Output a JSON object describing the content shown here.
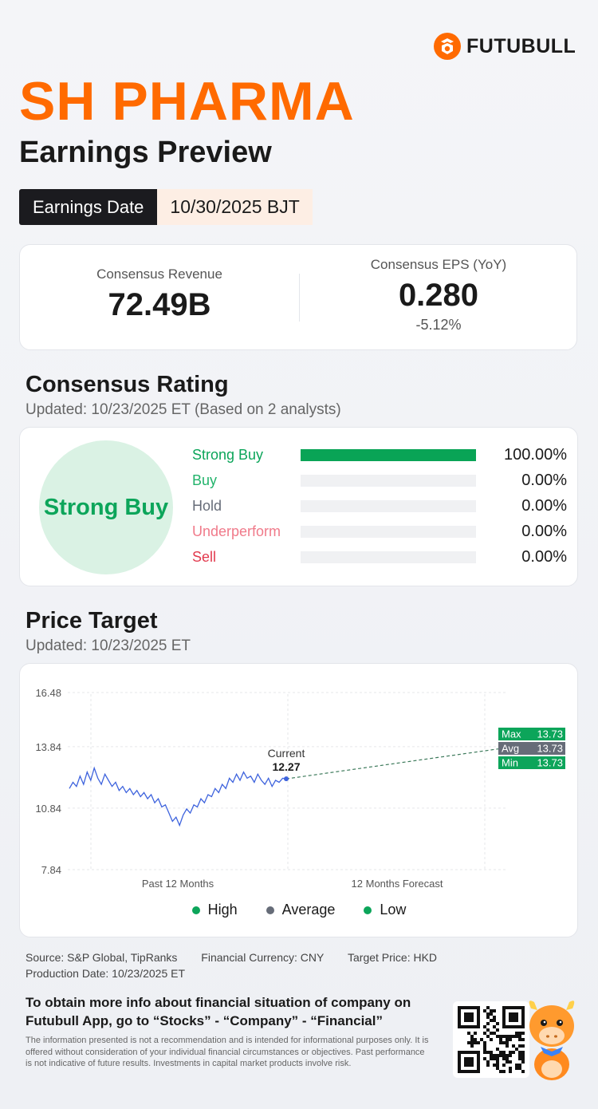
{
  "brand": {
    "name": "FUTUBULL"
  },
  "header": {
    "company": "SH PHARMA",
    "subtitle": "Earnings Preview",
    "date_label": "Earnings Date",
    "date_value": "10/30/2025 BJT"
  },
  "consensus": {
    "revenue_label": "Consensus Revenue",
    "revenue_value": "72.49B",
    "eps_label": "Consensus EPS (YoY)",
    "eps_value": "0.280",
    "eps_change": "-5.12%"
  },
  "rating": {
    "title": "Consensus Rating",
    "updated": "Updated: 10/23/2025 ET (Based on 2 analysts)",
    "overall": "Strong Buy",
    "rows": [
      {
        "name": "Strong Buy",
        "pct": "100.00%",
        "value": 100,
        "color": "#0ca55a"
      },
      {
        "name": "Buy",
        "pct": "0.00%",
        "value": 0,
        "color": "#22b36b"
      },
      {
        "name": "Hold",
        "pct": "0.00%",
        "value": 0,
        "color": "#666c78"
      },
      {
        "name": "Underperform",
        "pct": "0.00%",
        "value": 0,
        "color": "#f07a8a"
      },
      {
        "name": "Sell",
        "pct": "0.00%",
        "value": 0,
        "color": "#e23a4e"
      }
    ]
  },
  "price_target": {
    "title": "Price Target",
    "updated": "Updated: 10/23/2025 ET"
  },
  "chart_data": {
    "type": "line",
    "yticks": [
      "16.48",
      "13.84",
      "10.84",
      "7.84"
    ],
    "ylim": [
      7.84,
      16.48
    ],
    "xlabels": [
      "Past 12 Months",
      "12 Months Forecast"
    ],
    "current_label": "Current",
    "current_value": "12.27",
    "current": 12.27,
    "history": [
      11.8,
      12.1,
      11.9,
      12.4,
      12.0,
      12.6,
      12.2,
      12.8,
      12.3,
      12.0,
      12.5,
      12.2,
      11.9,
      12.1,
      11.7,
      11.9,
      11.6,
      11.8,
      11.5,
      11.7,
      11.4,
      11.6,
      11.3,
      11.5,
      11.1,
      11.3,
      10.9,
      11.0,
      10.6,
      10.2,
      10.4,
      10.0,
      10.5,
      10.8,
      10.6,
      11.0,
      10.9,
      11.3,
      11.1,
      11.5,
      11.4,
      11.8,
      11.6,
      12.0,
      11.8,
      12.3,
      12.1,
      12.5,
      12.2,
      12.6,
      12.3,
      12.4,
      12.1,
      12.5,
      12.2,
      12.0,
      12.3,
      11.9,
      12.2,
      12.1,
      12.3,
      12.27
    ],
    "targets": {
      "max": {
        "label": "Max",
        "value": "13.73",
        "num": 13.73,
        "color": "#0ca55a"
      },
      "avg": {
        "label": "Avg",
        "value": "13.73",
        "num": 13.73,
        "color": "#666c78"
      },
      "min": {
        "label": "Min",
        "value": "13.73",
        "num": 13.73,
        "color": "#0ca55a"
      }
    },
    "legend": [
      {
        "name": "High",
        "color": "#0ca55a"
      },
      {
        "name": "Average",
        "color": "#666c78"
      },
      {
        "name": "Low",
        "color": "#0ca55a"
      }
    ],
    "line_color": "#3e63dd"
  },
  "footer": {
    "source": "Source: S&P Global, TipRanks",
    "currency": "Financial Currency: CNY",
    "target_price": "Target Price: HKD",
    "production": "Production Date: 10/23/2025 ET",
    "cta": "To obtain more info about financial situation of company on Futubull App, go to “Stocks” - “Company” - “Financial”",
    "disclaimer": "The information presented is not a recommendation and is intended for informational purposes only. It is offered without consideration of your individual financial circumstances or objectives. Past performance is not indicative of future results. Investments in capital market products involve risk."
  }
}
